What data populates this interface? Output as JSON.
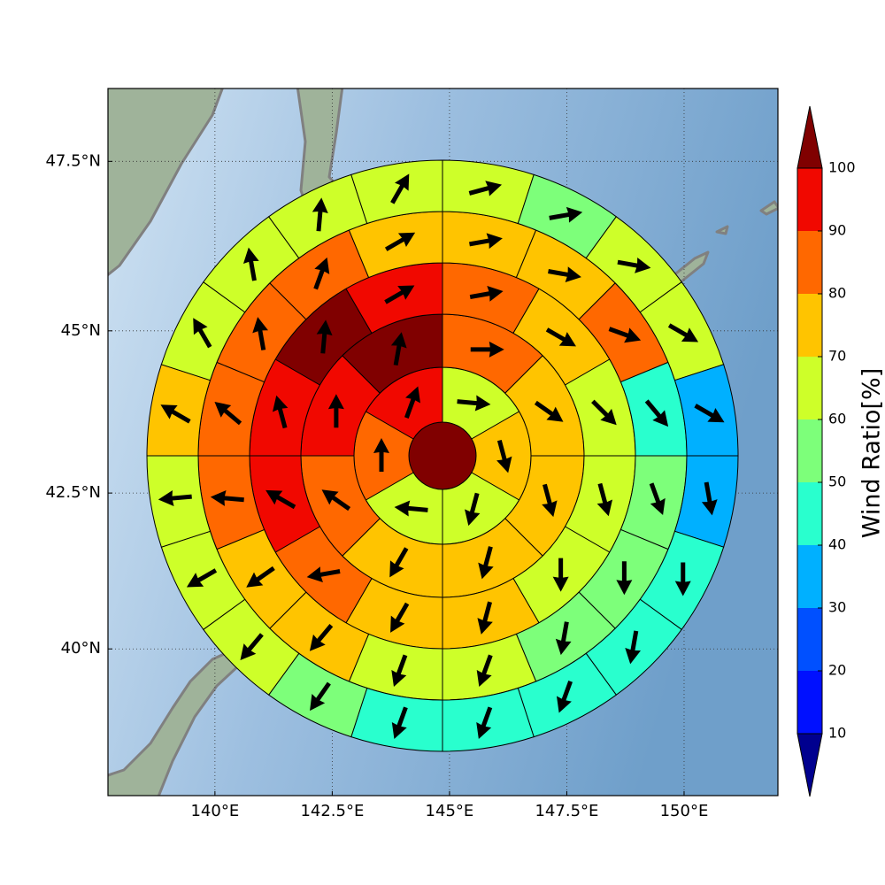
{
  "chart_data": {
    "type": "polar",
    "projection": "mercator",
    "xlim": [
      137.72,
      152.0
    ],
    "ylim": [
      37.56,
      48.54
    ],
    "xticks": [
      {
        "value": 140,
        "label": "140°E"
      },
      {
        "value": 142.5,
        "label": "142.5°E"
      },
      {
        "value": 145,
        "label": "145°E"
      },
      {
        "value": 147.5,
        "label": "147.5°E"
      },
      {
        "value": 150,
        "label": "150°E"
      }
    ],
    "yticks": [
      {
        "value": 40,
        "label": "40°N"
      },
      {
        "value": 42.5,
        "label": "42.5°N"
      },
      {
        "value": 45,
        "label": "45°N"
      },
      {
        "value": 47.5,
        "label": "47.5°N"
      }
    ],
    "grid": true,
    "center_value": 105,
    "rings": [
      {
        "values": [
          65,
          75,
          65,
          65,
          85,
          95
        ],
        "directions": [
          95,
          165,
          195,
          275,
          0,
          20
        ]
      },
      {
        "values": [
          85,
          75,
          75,
          75,
          75,
          85,
          95,
          105
        ],
        "directions": [
          90,
          125,
          165,
          195,
          210,
          305,
          0,
          10
        ]
      },
      {
        "values": [
          85,
          75,
          65,
          65,
          65,
          75,
          75,
          85,
          95,
          95,
          105,
          95
        ],
        "directions": [
          80,
          120,
          135,
          165,
          180,
          195,
          210,
          260,
          300,
          345,
          5,
          60
        ]
      },
      {
        "values": [
          75,
          75,
          85,
          45,
          55,
          55,
          55,
          65,
          65,
          75,
          75,
          85,
          85,
          85,
          85,
          75
        ],
        "directions": [
          80,
          100,
          110,
          140,
          160,
          180,
          190,
          200,
          200,
          220,
          235,
          275,
          310,
          350,
          20,
          60
        ]
      },
      {
        "values": [
          65,
          55,
          65,
          65,
          35,
          35,
          45,
          45,
          45,
          45,
          45,
          55,
          65,
          65,
          65,
          75,
          65,
          65,
          65,
          65
        ],
        "directions": [
          75,
          80,
          100,
          120,
          120,
          170,
          180,
          190,
          200,
          200,
          200,
          215,
          220,
          240,
          265,
          300,
          330,
          350,
          5,
          30
        ]
      }
    ],
    "colorbar": {
      "label": "Wind Ratio[%]",
      "levels": [
        10,
        20,
        30,
        40,
        50,
        60,
        70,
        80,
        90,
        100
      ],
      "colors": [
        "#00008f",
        "#0010ff",
        "#0050ff",
        "#00b0ff",
        "#29ffce",
        "#7dff7a",
        "#ceff29",
        "#ffc400",
        "#ff6800",
        "#f10800",
        "#800000"
      ],
      "extend": "both"
    }
  }
}
